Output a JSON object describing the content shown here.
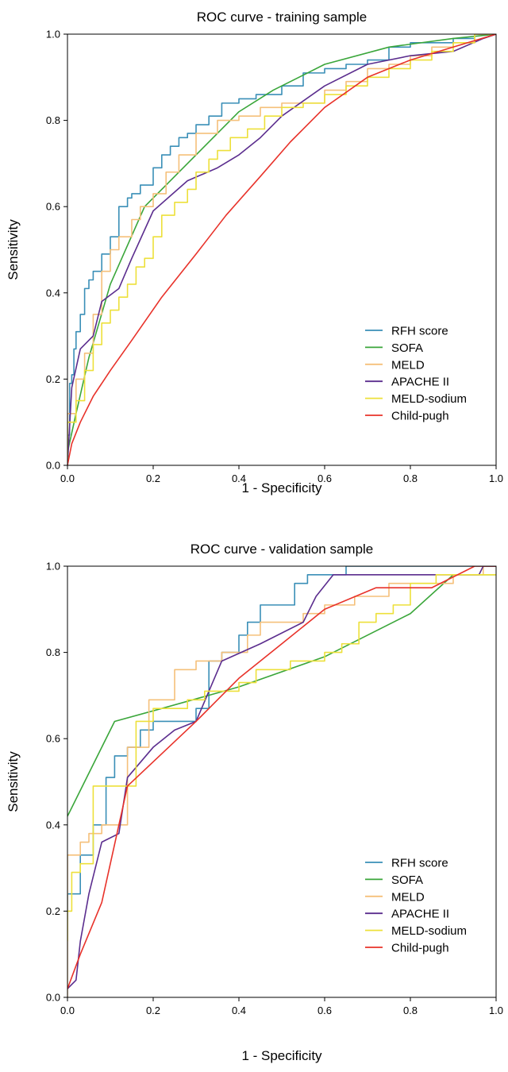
{
  "chart_data": [
    {
      "type": "line",
      "title": "ROC curve - training sample",
      "xlabel": "1 - Specificity",
      "ylabel": "Sensitivity",
      "xlim": [
        0,
        1
      ],
      "ylim": [
        0,
        1
      ],
      "xticks": [
        "0.0",
        "0.2",
        "0.4",
        "0.6",
        "0.8",
        "1.0"
      ],
      "yticks": [
        "0.0",
        "0.2",
        "0.4",
        "0.6",
        "0.8",
        "1.0"
      ],
      "grid": false,
      "legend_position": "bottom-right",
      "series": [
        {
          "name": "RFH score",
          "color": "#3a8fb7",
          "step": true,
          "x": [
            0,
            0.005,
            0.01,
            0.015,
            0.02,
            0.03,
            0.04,
            0.05,
            0.06,
            0.08,
            0.1,
            0.12,
            0.14,
            0.15,
            0.17,
            0.2,
            0.22,
            0.24,
            0.26,
            0.28,
            0.3,
            0.33,
            0.36,
            0.4,
            0.44,
            0.5,
            0.55,
            0.6,
            0.65,
            0.7,
            0.75,
            0.8,
            0.85,
            0.9,
            0.95,
            1.0
          ],
          "y": [
            0,
            0.07,
            0.19,
            0.21,
            0.27,
            0.31,
            0.35,
            0.41,
            0.43,
            0.45,
            0.49,
            0.53,
            0.6,
            0.62,
            0.63,
            0.65,
            0.69,
            0.72,
            0.74,
            0.76,
            0.77,
            0.79,
            0.81,
            0.84,
            0.85,
            0.86,
            0.88,
            0.91,
            0.92,
            0.93,
            0.94,
            0.97,
            0.98,
            0.98,
            0.99,
            1.0
          ]
        },
        {
          "name": "SOFA",
          "color": "#3aa63a",
          "step": false,
          "x": [
            0,
            0.02,
            0.05,
            0.1,
            0.18,
            0.3,
            0.4,
            0.48,
            0.6,
            0.75,
            0.9,
            1.0
          ],
          "y": [
            0.03,
            0.12,
            0.25,
            0.42,
            0.6,
            0.72,
            0.82,
            0.87,
            0.93,
            0.97,
            0.99,
            1.0
          ]
        },
        {
          "name": "MELD",
          "color": "#f5c07a",
          "step": true,
          "x": [
            0,
            0.02,
            0.04,
            0.06,
            0.08,
            0.1,
            0.12,
            0.15,
            0.17,
            0.2,
            0.23,
            0.26,
            0.3,
            0.35,
            0.4,
            0.45,
            0.5,
            0.55,
            0.6,
            0.65,
            0.7,
            0.75,
            0.8,
            0.85,
            0.9,
            0.95,
            1.0
          ],
          "y": [
            0,
            0.12,
            0.2,
            0.26,
            0.35,
            0.45,
            0.5,
            0.53,
            0.57,
            0.6,
            0.63,
            0.68,
            0.72,
            0.77,
            0.8,
            0.81,
            0.83,
            0.84,
            0.84,
            0.87,
            0.89,
            0.92,
            0.93,
            0.95,
            0.97,
            0.98,
            1.0
          ]
        },
        {
          "name": "APACHE II",
          "color": "#5b2d8e",
          "step": false,
          "x": [
            0,
            0.01,
            0.03,
            0.06,
            0.08,
            0.12,
            0.15,
            0.2,
            0.28,
            0.35,
            0.4,
            0.45,
            0.5,
            0.6,
            0.7,
            0.8,
            0.9,
            0.97,
            1.0
          ],
          "y": [
            0,
            0.18,
            0.27,
            0.3,
            0.38,
            0.41,
            0.48,
            0.59,
            0.66,
            0.69,
            0.72,
            0.76,
            0.81,
            0.88,
            0.93,
            0.95,
            0.96,
            0.99,
            1.0
          ]
        },
        {
          "name": "MELD-sodium",
          "color": "#ede03a",
          "step": true,
          "x": [
            0,
            0.02,
            0.04,
            0.06,
            0.08,
            0.1,
            0.12,
            0.14,
            0.16,
            0.18,
            0.2,
            0.22,
            0.25,
            0.28,
            0.3,
            0.33,
            0.35,
            0.38,
            0.42,
            0.46,
            0.5,
            0.55,
            0.6,
            0.65,
            0.7,
            0.75,
            0.8,
            0.85,
            0.9,
            0.95,
            1.0
          ],
          "y": [
            0,
            0.1,
            0.15,
            0.22,
            0.28,
            0.33,
            0.36,
            0.39,
            0.42,
            0.46,
            0.48,
            0.53,
            0.58,
            0.61,
            0.64,
            0.68,
            0.71,
            0.73,
            0.76,
            0.78,
            0.81,
            0.83,
            0.84,
            0.86,
            0.88,
            0.9,
            0.92,
            0.94,
            0.96,
            0.98,
            1.0
          ]
        },
        {
          "name": "Child-pugh",
          "color": "#e8322a",
          "step": false,
          "x": [
            0,
            0.01,
            0.03,
            0.06,
            0.1,
            0.15,
            0.22,
            0.3,
            0.37,
            0.45,
            0.52,
            0.6,
            0.7,
            0.8,
            0.9,
            1.0
          ],
          "y": [
            0,
            0.05,
            0.1,
            0.16,
            0.22,
            0.29,
            0.39,
            0.49,
            0.58,
            0.67,
            0.75,
            0.83,
            0.9,
            0.94,
            0.97,
            1.0
          ]
        }
      ]
    },
    {
      "type": "line",
      "title": "ROC curve - validation sample",
      "xlabel": "1 - Specificity",
      "ylabel": "Sensitivity",
      "xlim": [
        0,
        1
      ],
      "ylim": [
        0,
        1
      ],
      "xticks": [
        "0.0",
        "0.2",
        "0.4",
        "0.6",
        "0.8",
        "1.0"
      ],
      "yticks": [
        "0.0",
        "0.2",
        "0.4",
        "0.6",
        "0.8",
        "1.0"
      ],
      "grid": false,
      "legend_position": "bottom-right",
      "series": [
        {
          "name": "RFH score",
          "color": "#3a8fb7",
          "step": true,
          "x": [
            0,
            0.03,
            0.06,
            0.09,
            0.11,
            0.14,
            0.17,
            0.2,
            0.25,
            0.3,
            0.33,
            0.36,
            0.4,
            0.42,
            0.45,
            0.5,
            0.53,
            0.56,
            0.58,
            0.65,
            0.72,
            0.8,
            0.9,
            1.0
          ],
          "y": [
            0.18,
            0.24,
            0.33,
            0.4,
            0.51,
            0.56,
            0.58,
            0.62,
            0.64,
            0.64,
            0.67,
            0.78,
            0.8,
            0.84,
            0.87,
            0.91,
            0.91,
            0.96,
            0.98,
            0.98,
            1.0,
            1.0,
            1.0,
            1.0
          ]
        },
        {
          "name": "SOFA",
          "color": "#3aa63a",
          "step": false,
          "x": [
            0,
            0.11,
            0.22,
            0.4,
            0.6,
            0.8,
            0.9,
            1.0
          ],
          "y": [
            0.42,
            0.64,
            0.67,
            0.72,
            0.79,
            0.89,
            0.98,
            0.98
          ]
        },
        {
          "name": "MELD",
          "color": "#f5c07a",
          "step": true,
          "x": [
            0,
            0.03,
            0.05,
            0.08,
            0.11,
            0.14,
            0.17,
            0.19,
            0.22,
            0.25,
            0.28,
            0.3,
            0.33,
            0.36,
            0.42,
            0.45,
            0.5,
            0.55,
            0.6,
            0.67,
            0.75,
            0.83,
            0.9,
            0.97,
            1.0
          ],
          "y": [
            0,
            0.33,
            0.36,
            0.38,
            0.4,
            0.4,
            0.58,
            0.58,
            0.69,
            0.69,
            0.76,
            0.76,
            0.78,
            0.78,
            0.8,
            0.84,
            0.87,
            0.87,
            0.89,
            0.91,
            0.93,
            0.96,
            0.96,
            0.98,
            1.0
          ]
        },
        {
          "name": "APACHE II",
          "color": "#5b2d8e",
          "step": false,
          "x": [
            0,
            0.02,
            0.03,
            0.05,
            0.08,
            0.12,
            0.14,
            0.2,
            0.25,
            0.3,
            0.36,
            0.45,
            0.55,
            0.58,
            0.62,
            0.7,
            0.8,
            0.9,
            0.96,
            0.97,
            1.0
          ],
          "y": [
            0.02,
            0.04,
            0.13,
            0.24,
            0.36,
            0.38,
            0.51,
            0.58,
            0.62,
            0.64,
            0.78,
            0.82,
            0.87,
            0.93,
            0.98,
            0.98,
            0.98,
            0.98,
            0.98,
            1.0,
            1.0
          ]
        },
        {
          "name": "MELD-sodium",
          "color": "#ede03a",
          "step": true,
          "x": [
            0,
            0.01,
            0.03,
            0.06,
            0.09,
            0.12,
            0.16,
            0.2,
            0.24,
            0.28,
            0.32,
            0.36,
            0.4,
            0.44,
            0.48,
            0.52,
            0.56,
            0.6,
            0.64,
            0.68,
            0.72,
            0.76,
            0.8,
            0.86,
            0.95,
            1.0
          ],
          "y": [
            0.13,
            0.2,
            0.29,
            0.31,
            0.49,
            0.49,
            0.49,
            0.64,
            0.67,
            0.67,
            0.69,
            0.71,
            0.71,
            0.73,
            0.76,
            0.76,
            0.78,
            0.78,
            0.8,
            0.82,
            0.87,
            0.89,
            0.91,
            0.96,
            0.98,
            0.98
          ]
        },
        {
          "name": "Child-pugh",
          "color": "#e8322a",
          "step": false,
          "x": [
            0,
            0.03,
            0.08,
            0.14,
            0.3,
            0.4,
            0.5,
            0.6,
            0.72,
            0.85,
            0.95,
            1.0
          ],
          "y": [
            0.02,
            0.1,
            0.22,
            0.49,
            0.64,
            0.74,
            0.82,
            0.9,
            0.95,
            0.95,
            1.0,
            1.0
          ]
        }
      ]
    }
  ]
}
